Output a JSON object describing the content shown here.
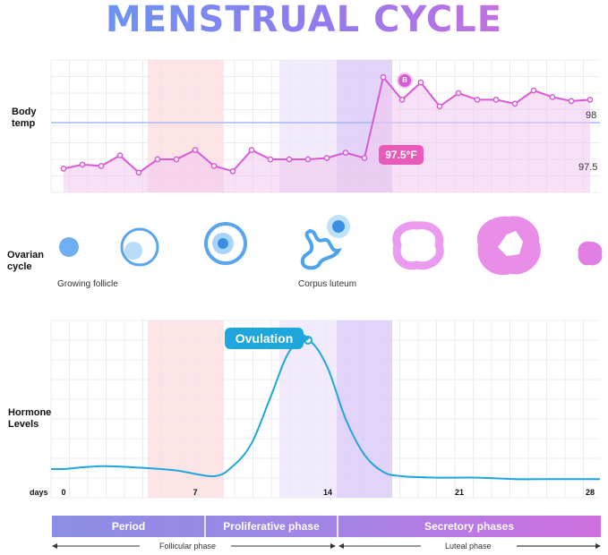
{
  "title": "MENSTRUAL CYCLE",
  "rows": {
    "temp_label": [
      "Body",
      "temp"
    ],
    "ovarian_label": [
      "Ovarian",
      "cycle"
    ],
    "hormone_label": [
      "Hormone",
      "Levels"
    ]
  },
  "temp_axis": {
    "high": "98",
    "low": "97.5"
  },
  "temp_marker": "97.5°F",
  "temp_peak_marker": "B",
  "ovarian_captions": {
    "growing": "Growing follicle",
    "luteum": "Corpus luteum"
  },
  "ovulation_label": "Ovulation",
  "days_label": "days",
  "day_ticks": [
    "0",
    "7",
    "14",
    "21",
    "28"
  ],
  "phases": {
    "period": "Period",
    "proliferative": "Proliferative phase",
    "secretory": "Secretory phases"
  },
  "bottom_phases": {
    "follicular": "Follicular phase",
    "luteal": "Luteal phase"
  },
  "colors": {
    "temp_line": "#d85ad6",
    "hormone_line": "#1fa6dd",
    "period_band": "#fbd9de",
    "ovulation_band": "#e2d4fb"
  },
  "chart_data": [
    {
      "type": "line",
      "title": "Body temp",
      "x": [
        0,
        1,
        2,
        3,
        4,
        5,
        6,
        7,
        8,
        9,
        10,
        11,
        12,
        13,
        14,
        15,
        16,
        17,
        18,
        19,
        20,
        21,
        22,
        23,
        24,
        25,
        26,
        27,
        28
      ],
      "y": [
        97.48,
        97.51,
        97.5,
        97.58,
        97.45,
        97.55,
        97.55,
        97.62,
        97.5,
        97.46,
        97.62,
        97.55,
        97.55,
        97.55,
        97.56,
        97.6,
        97.56,
        98.17,
        98.0,
        98.13,
        97.95,
        98.05,
        98.0,
        98.0,
        97.97,
        98.07,
        98.02,
        97.99,
        98.0
      ],
      "ylim": [
        97.3,
        98.3
      ]
    },
    {
      "type": "line",
      "title": "Hormone Levels",
      "x": [
        0,
        2,
        4,
        6,
        8,
        9,
        10,
        11,
        12,
        13,
        14,
        15,
        16,
        17,
        18,
        20,
        22,
        24,
        26,
        28
      ],
      "y": [
        0.1,
        0.12,
        0.11,
        0.09,
        0.05,
        0.12,
        0.28,
        0.6,
        0.92,
        1.0,
        0.82,
        0.45,
        0.2,
        0.08,
        0.05,
        0.04,
        0.04,
        0.03,
        0.03,
        0.03
      ],
      "ylim": [
        0,
        1.05
      ]
    }
  ]
}
